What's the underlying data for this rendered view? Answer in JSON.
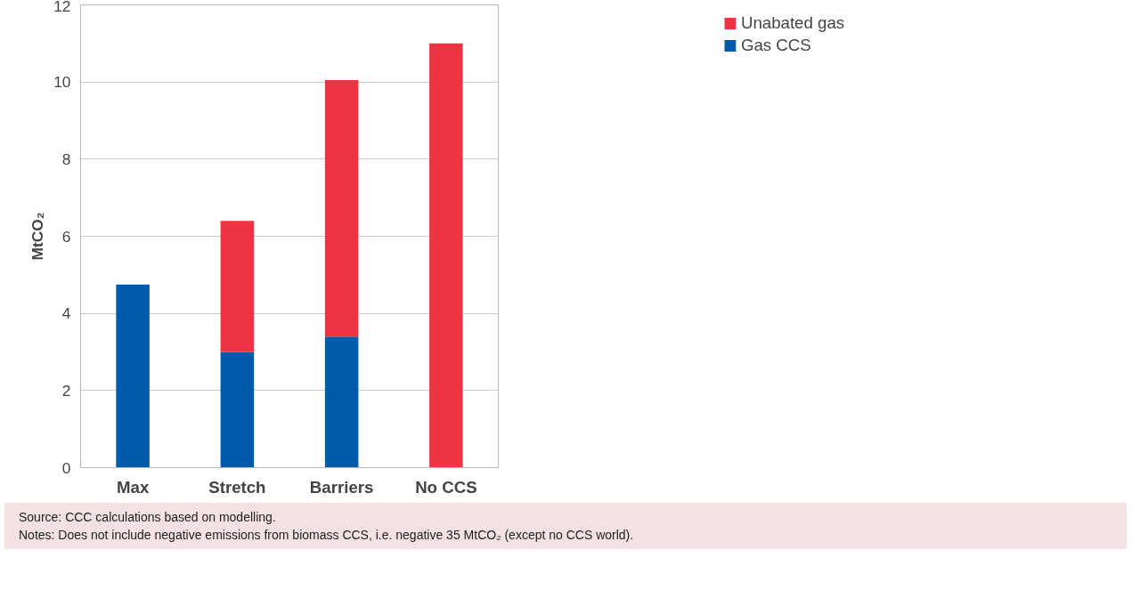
{
  "chart_data": {
    "type": "bar",
    "stacked": true,
    "ylabel": "MtCO₂",
    "categories": [
      "Max",
      "Stretch",
      "Barriers",
      "No CCS"
    ],
    "series": [
      {
        "name": "Gas CCS",
        "color": "#005baa",
        "values": [
          4.75,
          3.0,
          3.4,
          null
        ]
      },
      {
        "name": "Unabated gas",
        "color": "#ee3342",
        "values": [
          null,
          3.4,
          6.65,
          11.0
        ]
      }
    ],
    "ylim": [
      0,
      12
    ],
    "yticks": [
      0,
      2,
      4,
      6,
      8,
      10,
      12
    ],
    "grid": "y",
    "legend": "top right",
    "annotations": [
      "Source: CCC calculations based on modelling.",
      "Notes: Does not include negative emissions from biomass CCS, i.e. negative 35 MtCO₂ (except no CCS world)."
    ]
  }
}
